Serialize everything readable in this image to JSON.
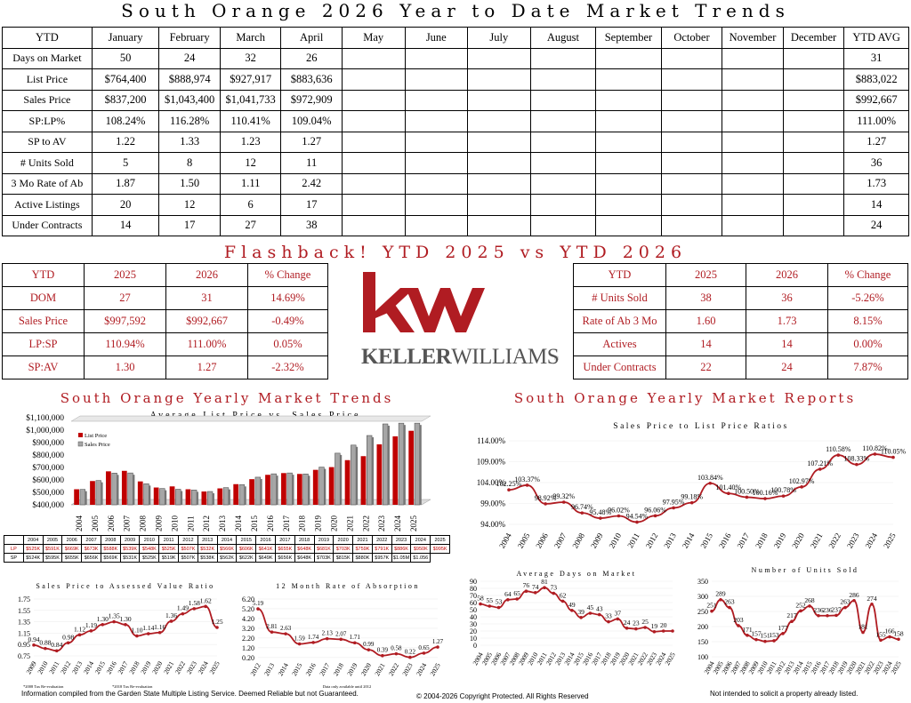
{
  "title": "South Orange 2026 Year to Date Market Trends",
  "ytd_table": {
    "headers": [
      "YTD",
      "January",
      "February",
      "March",
      "April",
      "May",
      "June",
      "July",
      "August",
      "September",
      "October",
      "November",
      "December",
      "YTD AVG"
    ],
    "rows": [
      [
        "Days on Market",
        "50",
        "24",
        "32",
        "26",
        "",
        "",
        "",
        "",
        "",
        "",
        "",
        "",
        "31"
      ],
      [
        "List Price",
        "$764,400",
        "$888,974",
        "$927,917",
        "$883,636",
        "",
        "",
        "",
        "",
        "",
        "",
        "",
        "",
        "$883,022"
      ],
      [
        "Sales Price",
        "$837,200",
        "$1,043,400",
        "$1,041,733",
        "$972,909",
        "",
        "",
        "",
        "",
        "",
        "",
        "",
        "",
        "$992,667"
      ],
      [
        "SP:LP%",
        "108.24%",
        "116.28%",
        "110.41%",
        "109.04%",
        "",
        "",
        "",
        "",
        "",
        "",
        "",
        "",
        "111.00%"
      ],
      [
        "SP to AV",
        "1.22",
        "1.33",
        "1.23",
        "1.27",
        "",
        "",
        "",
        "",
        "",
        "",
        "",
        "",
        "1.27"
      ],
      [
        "# Units Sold",
        "5",
        "8",
        "12",
        "11",
        "",
        "",
        "",
        "",
        "",
        "",
        "",
        "",
        "36"
      ],
      [
        "3 Mo Rate of Ab",
        "1.87",
        "1.50",
        "1.11",
        "2.42",
        "",
        "",
        "",
        "",
        "",
        "",
        "",
        "",
        "1.73"
      ],
      [
        "Active Listings",
        "20",
        "12",
        "6",
        "17",
        "",
        "",
        "",
        "",
        "",
        "",
        "",
        "",
        "14"
      ],
      [
        "Under Contracts",
        "14",
        "17",
        "27",
        "38",
        "",
        "",
        "",
        "",
        "",
        "",
        "",
        "",
        "24"
      ]
    ]
  },
  "flashback_title": "Flashback!  YTD 2025 vs YTD 2026",
  "compare_left": {
    "headers": [
      "YTD",
      "2025",
      "2026",
      "% Change"
    ],
    "rows": [
      [
        "DOM",
        "27",
        "31",
        "14.69%"
      ],
      [
        "Sales Price",
        "$997,592",
        "$992,667",
        "-0.49%"
      ],
      [
        "LP:SP",
        "110.94%",
        "111.00%",
        "0.05%"
      ],
      [
        "SP:AV",
        "1.30",
        "1.27",
        "-2.32%"
      ]
    ]
  },
  "compare_right": {
    "headers": [
      "YTD",
      "2025",
      "2026",
      "% Change"
    ],
    "rows": [
      [
        "# Units Sold",
        "38",
        "36",
        "-5.26%"
      ],
      [
        "Rate of Ab 3 Mo",
        "1.60",
        "1.73",
        "8.15%"
      ],
      [
        "Actives",
        "14",
        "14",
        "0.00%"
      ],
      [
        "Under Contracts",
        "22",
        "24",
        "7.87%"
      ]
    ]
  },
  "logo": {
    "mark": "kw",
    "wordmark_bold": "KELLER",
    "wordmark_light": "WILLIAMS",
    "registered": "®",
    "color": "#b01c22"
  },
  "section_left_title": "South Orange Yearly Market Trends",
  "section_right_title": "South Orange Yearly Market Reports",
  "colors": {
    "accent": "#b01c22",
    "list_bar": "#c00000",
    "sales_bar": "#a6a6a6",
    "line": "#b01c22"
  },
  "chart_data": [
    {
      "type": "bar",
      "title": "Average List Price vs. Sales Price",
      "categories": [
        "2004",
        "2005",
        "2006",
        "2007",
        "2008",
        "2009",
        "2010",
        "2011",
        "2012",
        "2013",
        "2014",
        "2015",
        "2016",
        "2017",
        "2018",
        "2019",
        "2020",
        "2021",
        "2022",
        "2023",
        "2024",
        "2025"
      ],
      "series": [
        {
          "name": "List Price",
          "values": [
            525,
            591,
            669,
            673,
            588,
            539,
            548,
            525,
            507,
            532,
            566,
            606,
            641,
            655,
            648,
            681,
            703,
            759,
            791,
            886,
            950,
            995
          ]
        },
        {
          "name": "Sales Price",
          "values": [
            524,
            595,
            655,
            656,
            569,
            531,
            525,
            519,
            507,
            538,
            562,
            622,
            649,
            656,
            648,
            703,
            815,
            880,
            957,
            1050,
            1056,
            1056
          ]
        }
      ],
      "ylim": [
        400000,
        1100000
      ],
      "y_ticks": [
        "$400,000",
        "$500,000",
        "$600,000",
        "$700,000",
        "$800,000",
        "$900,000",
        "$1,000,000",
        "$1,100,000"
      ],
      "table_rows": [
        {
          "label": "LP",
          "values": [
            "$525K",
            "$591K",
            "$669K",
            "$673K",
            "$588K",
            "$539K",
            "$548K",
            "$525K",
            "$507K",
            "$532K",
            "$566K",
            "$606K",
            "$641K",
            "$655K",
            "$648K",
            "$681K",
            "$703K",
            "$759K",
            "$791K",
            "$886K",
            "$950K",
            "$995K"
          ]
        },
        {
          "label": "SP",
          "values": [
            "$524K",
            "$595K",
            "$655K",
            "$656K",
            "$569K",
            "$531K",
            "$525K",
            "$519K",
            "$507K",
            "$538K",
            "$562K",
            "$622K",
            "$649K",
            "$656K",
            "$648K",
            "$703K",
            "$815K",
            "$880K",
            "$957K",
            "$1.05M",
            "$1.056"
          ]
        }
      ]
    },
    {
      "type": "line",
      "title": "Sales Price to List Price Ratios",
      "x": [
        "2004",
        "2005",
        "2006",
        "2007",
        "2008",
        "2009",
        "2010",
        "2011",
        "2012",
        "2013",
        "2014",
        "2015",
        "2016",
        "2017",
        "2018",
        "2019",
        "2020",
        "2021",
        "2022",
        "2023",
        "2024",
        "2025"
      ],
      "values": [
        102.25,
        103.37,
        98.92,
        99.32,
        96.74,
        95.48,
        96.02,
        94.54,
        96.06,
        97.95,
        99.18,
        103.84,
        101.4,
        100.5,
        100.16,
        100.78,
        102.97,
        107.21,
        110.58,
        108.33,
        110.82,
        110.05
      ],
      "labels": [
        "102.25%",
        "103.37%",
        "98.92%",
        "99.32%",
        "96.74%",
        "95.48%",
        "96.02%",
        "94.54%",
        "96.06%",
        "97.95%",
        "99.18%",
        "103.84%",
        "101.40%",
        "100.50%",
        "100.16%",
        "100.78%",
        "102.97%",
        "107.21%",
        "110.58%",
        "108.33%",
        "110.82%",
        "110.05%"
      ],
      "ylim": [
        94,
        114
      ],
      "y_ticks": [
        "94.00%",
        "99.00%",
        "104.00%",
        "109.00%",
        "114.00%"
      ]
    },
    {
      "type": "line",
      "title": "Sales Price to Assessed Value Ratio",
      "x": [
        "2009",
        "2010",
        "2011",
        "2012",
        "2013",
        "2014",
        "2015",
        "2016",
        "2017",
        "2018",
        "2019",
        "2020",
        "2021",
        "2022",
        "2023",
        "2024",
        "2025"
      ],
      "values": [
        0.94,
        0.88,
        0.84,
        0.98,
        1.12,
        1.19,
        1.3,
        1.35,
        1.3,
        1.1,
        1.14,
        1.16,
        1.36,
        1.49,
        1.58,
        1.62,
        1.25
      ],
      "labels": [
        "0.94",
        "0.88",
        "0.84",
        "0.98",
        "1.12",
        "1.19",
        "1.30",
        "1.35",
        "1.30",
        "1.10",
        "1.14",
        "1.16",
        "1.36",
        "1.49",
        "1.58",
        "1.62",
        "1.25"
      ],
      "ylim": [
        0.75,
        1.75
      ],
      "y_ticks": [
        "0.75",
        "0.95",
        "1.15",
        "1.35",
        "1.55",
        "1.75"
      ],
      "notes": [
        "*2008 Tax Re-evaluation",
        "*2018 Tax Re-evaluation"
      ]
    },
    {
      "type": "line",
      "title": "12 Month Rate of Absorption",
      "x": [
        "2012",
        "2013",
        "2014",
        "2015",
        "2016",
        "2017",
        "2018",
        "2019",
        "2020",
        "2021",
        "2022",
        "2023",
        "2024",
        "2025"
      ],
      "values": [
        5.19,
        2.81,
        2.63,
        1.59,
        1.74,
        2.13,
        2.07,
        1.71,
        0.99,
        0.39,
        0.58,
        0.22,
        0.65,
        1.27
      ],
      "labels": [
        "5.19",
        "2.81",
        "2.63",
        "1.59",
        "1.74",
        "2.13",
        "2.07",
        "1.71",
        "0.99",
        "0.39",
        "0.58",
        "0.22",
        "0.65",
        "1.27"
      ],
      "ylim": [
        0,
        6.2
      ],
      "y_ticks": [
        "0.20",
        "1.20",
        "2.20",
        "3.20",
        "4.20",
        "5.20",
        "6.20"
      ],
      "note": "Data only available until 2012"
    },
    {
      "type": "line",
      "title": "Average Days on Market",
      "x": [
        "2004",
        "2005",
        "2006",
        "2007",
        "2008",
        "2009",
        "2010",
        "2011",
        "2012",
        "2013",
        "2014",
        "2015",
        "2016",
        "2017",
        "2018",
        "2019",
        "2020",
        "2021",
        "2022",
        "2023",
        "2024",
        "2025"
      ],
      "values": [
        58,
        55,
        53,
        64,
        65,
        76,
        74,
        81,
        73,
        62,
        49,
        39,
        45,
        43,
        33,
        37,
        24,
        23,
        25,
        19,
        20,
        20
      ],
      "labels": [
        "58",
        "55",
        "53",
        "64",
        "65",
        "76",
        "74",
        "81",
        "73",
        "62",
        "49",
        "39",
        "45",
        "43",
        "33",
        "37",
        "24",
        "23",
        "25",
        "19",
        "20",
        ""
      ],
      "ylim": [
        0,
        90
      ],
      "y_ticks": [
        "0",
        "10",
        "20",
        "30",
        "40",
        "50",
        "60",
        "70",
        "80",
        "90"
      ]
    },
    {
      "type": "line",
      "title": "Number of Units Sold",
      "x": [
        "2004",
        "2005",
        "2006",
        "2007",
        "2008",
        "2009",
        "2010",
        "2011",
        "2012",
        "2013",
        "2014",
        "2015",
        "2016",
        "2017",
        "2018",
        "2019",
        "2020",
        "2021",
        "2022",
        "2023",
        "2024",
        "2025"
      ],
      "values": [
        251,
        289,
        263,
        203,
        171,
        157,
        151,
        153,
        177,
        217,
        252,
        268,
        236,
        236,
        237,
        263,
        286,
        181,
        274,
        155,
        166,
        158
      ],
      "labels": [
        "251",
        "289",
        "263",
        "203",
        "171",
        "157",
        "151",
        "153",
        "177",
        "217",
        "252",
        "268",
        "236",
        "236",
        "237",
        "263",
        "286",
        "181",
        "274",
        "155",
        "166",
        "158"
      ],
      "ylim": [
        100,
        350
      ],
      "y_ticks": [
        "100",
        "150",
        "200",
        "250",
        "300",
        "350"
      ]
    }
  ],
  "footer": {
    "left": "Information compiled from the Garden State Multiple Listing Service.  Deemed Reliable but not Guaranteed.",
    "center": "© 2004-2026 Copyright Protected.  All Rights Reserved",
    "right": "Not intended to solicit a property already listed."
  }
}
